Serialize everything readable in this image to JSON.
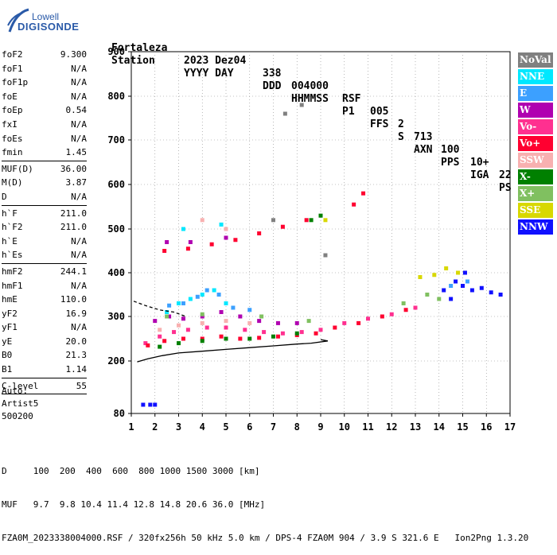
{
  "logo": {
    "line1": "Lowell",
    "line2": "DIGISONDE"
  },
  "header": {
    "labels": [
      "Station",
      "YYYY DAY",
      "DDD",
      "HHMMSS",
      "P1",
      "FFS",
      "S",
      "AXN",
      "PPS",
      "IGA",
      "PS"
    ],
    "values": [
      "Fortaleza",
      "2023 Dez04",
      "338",
      "004000",
      "RSF",
      "005",
      "2",
      "713",
      "100",
      "10+",
      "22"
    ]
  },
  "params": {
    "group1": [
      {
        "k": "foF2",
        "v": "9.300"
      },
      {
        "k": "foF1",
        "v": "N/A"
      },
      {
        "k": "foF1p",
        "v": "N/A"
      },
      {
        "k": "foE",
        "v": "N/A"
      },
      {
        "k": "foEp",
        "v": "0.54"
      },
      {
        "k": "fxI",
        "v": "N/A"
      },
      {
        "k": "foEs",
        "v": "N/A"
      },
      {
        "k": "fmin",
        "v": "1.45"
      }
    ],
    "group2": [
      {
        "k": "MUF(D)",
        "v": "36.00"
      },
      {
        "k": "M(D)",
        "v": "3.87"
      },
      {
        "k": "D",
        "v": "N/A"
      }
    ],
    "group3": [
      {
        "k": "h`F",
        "v": "211.0"
      },
      {
        "k": "h`F2",
        "v": "211.0"
      },
      {
        "k": "h`E",
        "v": "N/A"
      },
      {
        "k": "h`Es",
        "v": "N/A"
      }
    ],
    "group4": [
      {
        "k": "hmF2",
        "v": "244.1"
      },
      {
        "k": "hmF1",
        "v": "N/A"
      },
      {
        "k": "hmE",
        "v": "110.0"
      },
      {
        "k": "yF2",
        "v": "16.9"
      },
      {
        "k": "yF1",
        "v": "N/A"
      },
      {
        "k": "yE",
        "v": "20.0"
      },
      {
        "k": "B0",
        "v": "21.3"
      },
      {
        "k": "B1",
        "v": "1.14"
      }
    ],
    "group5": [
      {
        "k": "C-level",
        "v": "55"
      }
    ]
  },
  "auto": [
    "Auto:",
    "Artist5",
    "500200"
  ],
  "legend": [
    {
      "label": "NoVal",
      "color": "#808080"
    },
    {
      "label": "NNE",
      "color": "#00e8ff"
    },
    {
      "label": "E",
      "color": "#3ca0ff"
    },
    {
      "label": "W",
      "color": "#b000b0"
    },
    {
      "label": "Vo-",
      "color": "#ff3090"
    },
    {
      "label": "Vo+",
      "color": "#ff0030"
    },
    {
      "label": "SSW",
      "color": "#f8b0b0"
    },
    {
      "label": "X-",
      "color": "#008000"
    },
    {
      "label": "X+",
      "color": "#80c060"
    },
    {
      "label": "SSE",
      "color": "#d8d800"
    },
    {
      "label": "NNW",
      "color": "#1010ff"
    }
  ],
  "bottom": {
    "d_row": "D     100  200  400  600  800 1000 1500 3000 [km]",
    "muf_row": "MUF   9.7  9.8 10.4 11.4 12.8 14.8 20.6 36.0 [MHz]",
    "info_row": "FZA0M_2023338004000.RSF / 320fx256h 50 kHz 5.0 km / DPS-4 FZA0M 904 / 3.9 S 321.6 E   Ion2Png 1.3.20"
  },
  "chart_data": {
    "type": "scatter",
    "x_ticks": [
      "1",
      "2",
      "3",
      "4",
      "5",
      "6",
      "7",
      "8",
      "9",
      "10",
      "11",
      "12",
      "13",
      "14",
      "15",
      "16",
      "17"
    ],
    "y_ticks": [
      "80",
      "200",
      "300",
      "400",
      "500",
      "600",
      "700",
      "800",
      "900"
    ],
    "xlim": [
      1,
      17
    ],
    "y_axis": "virtual height [km], nonlinear",
    "grid": "dotted",
    "series": [
      {
        "name": "NoVal",
        "color": "#808080",
        "points": [
          [
            7.0,
            520
          ],
          [
            7.5,
            760
          ],
          [
            8.2,
            780
          ],
          [
            9.2,
            440
          ]
        ]
      },
      {
        "name": "NNE",
        "color": "#00e8ff",
        "points": [
          [
            3.0,
            330
          ],
          [
            3.5,
            340
          ],
          [
            4.0,
            350
          ],
          [
            4.5,
            360
          ],
          [
            5.0,
            330
          ],
          [
            2.5,
            310
          ],
          [
            3.2,
            500
          ],
          [
            4.8,
            510
          ]
        ]
      },
      {
        "name": "E",
        "color": "#3ca0ff",
        "points": [
          [
            2.6,
            325
          ],
          [
            3.2,
            330
          ],
          [
            3.8,
            345
          ],
          [
            4.2,
            360
          ],
          [
            4.7,
            350
          ],
          [
            5.3,
            320
          ],
          [
            6.0,
            315
          ],
          [
            14.5,
            370
          ],
          [
            15.2,
            380
          ]
        ]
      },
      {
        "name": "W",
        "color": "#b000b0",
        "points": [
          [
            2.0,
            290
          ],
          [
            2.6,
            300
          ],
          [
            3.2,
            295
          ],
          [
            4.0,
            300
          ],
          [
            4.8,
            310
          ],
          [
            5.6,
            300
          ],
          [
            6.4,
            290
          ],
          [
            7.2,
            285
          ],
          [
            8.0,
            285
          ],
          [
            2.5,
            470
          ],
          [
            3.5,
            470
          ],
          [
            5.0,
            480
          ]
        ]
      },
      {
        "name": "Vo-",
        "color": "#ff3090",
        "points": [
          [
            1.6,
            240
          ],
          [
            2.2,
            255
          ],
          [
            2.8,
            265
          ],
          [
            3.4,
            270
          ],
          [
            4.2,
            275
          ],
          [
            5.0,
            275
          ],
          [
            5.8,
            270
          ],
          [
            6.6,
            265
          ],
          [
            7.4,
            262
          ],
          [
            8.2,
            265
          ],
          [
            9.0,
            270
          ],
          [
            10.0,
            285
          ],
          [
            11.0,
            295
          ],
          [
            12.0,
            305
          ],
          [
            13.0,
            320
          ]
        ]
      },
      {
        "name": "Vo+",
        "color": "#ff0030",
        "points": [
          [
            1.7,
            235
          ],
          [
            2.4,
            245
          ],
          [
            3.2,
            250
          ],
          [
            4.0,
            250
          ],
          [
            4.8,
            255
          ],
          [
            5.6,
            250
          ],
          [
            6.4,
            252
          ],
          [
            7.2,
            255
          ],
          [
            8.0,
            258
          ],
          [
            8.8,
            262
          ],
          [
            9.6,
            275
          ],
          [
            10.6,
            285
          ],
          [
            11.6,
            300
          ],
          [
            12.6,
            315
          ],
          [
            2.4,
            450
          ],
          [
            3.4,
            455
          ],
          [
            4.4,
            465
          ],
          [
            5.4,
            475
          ],
          [
            6.4,
            490
          ],
          [
            7.4,
            505
          ],
          [
            8.4,
            520
          ],
          [
            10.4,
            555
          ],
          [
            10.8,
            580
          ]
        ]
      },
      {
        "name": "SSW",
        "color": "#f8b0b0",
        "points": [
          [
            2.2,
            270
          ],
          [
            3.0,
            280
          ],
          [
            4.0,
            285
          ],
          [
            5.0,
            290
          ],
          [
            6.0,
            285
          ],
          [
            4.0,
            520
          ],
          [
            5.0,
            500
          ]
        ]
      },
      {
        "name": "X-",
        "color": "#008000",
        "points": [
          [
            2.2,
            232
          ],
          [
            3.0,
            240
          ],
          [
            4.0,
            245
          ],
          [
            5.0,
            250
          ],
          [
            6.0,
            250
          ],
          [
            7.0,
            255
          ],
          [
            8.0,
            262
          ],
          [
            8.6,
            520
          ],
          [
            9.0,
            530
          ]
        ]
      },
      {
        "name": "X+",
        "color": "#80c060",
        "points": [
          [
            2.5,
            300
          ],
          [
            4.0,
            305
          ],
          [
            6.5,
            300
          ],
          [
            8.5,
            290
          ],
          [
            12.5,
            330
          ],
          [
            13.5,
            350
          ],
          [
            14.0,
            340
          ]
        ]
      },
      {
        "name": "SSE",
        "color": "#d8d800",
        "points": [
          [
            9.2,
            520
          ],
          [
            13.2,
            390
          ],
          [
            13.8,
            395
          ],
          [
            14.3,
            410
          ],
          [
            14.8,
            400
          ]
        ]
      },
      {
        "name": "NNW",
        "color": "#1010ff",
        "points": [
          [
            1.5,
            100
          ],
          [
            1.8,
            100
          ],
          [
            2.0,
            100
          ],
          [
            14.2,
            360
          ],
          [
            14.7,
            380
          ],
          [
            15.0,
            370
          ],
          [
            15.4,
            360
          ],
          [
            15.8,
            365
          ],
          [
            16.2,
            355
          ],
          [
            16.6,
            350
          ],
          [
            15.1,
            400
          ],
          [
            14.5,
            340
          ]
        ]
      }
    ],
    "lines": [
      {
        "name": "profile",
        "color": "#000000",
        "points": [
          [
            1.25,
            198
          ],
          [
            1.7,
            205
          ],
          [
            2.3,
            212
          ],
          [
            3.0,
            218
          ],
          [
            4.0,
            222
          ],
          [
            5.0,
            226
          ],
          [
            6.0,
            230
          ],
          [
            7.0,
            234
          ],
          [
            8.0,
            238
          ],
          [
            8.6,
            240
          ],
          [
            9.3,
            245
          ],
          [
            9.0,
            248
          ]
        ]
      },
      {
        "name": "profile-dashed",
        "color": "#000000",
        "dashed": true,
        "points": [
          [
            1.1,
            335
          ],
          [
            1.6,
            325
          ],
          [
            2.2,
            315
          ],
          [
            2.8,
            310
          ],
          [
            3.3,
            300
          ]
        ]
      }
    ]
  }
}
